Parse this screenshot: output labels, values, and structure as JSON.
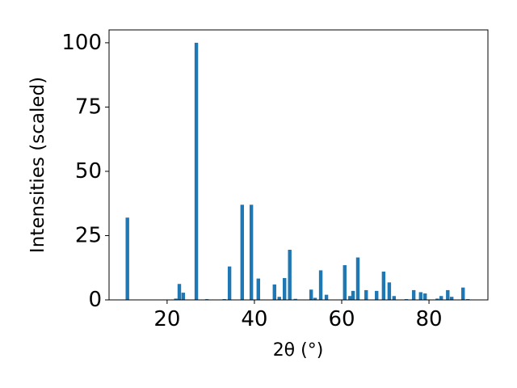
{
  "chart_data": {
    "type": "bar",
    "xlabel": "2θ (°)",
    "ylabel": "Intensities (scaled)",
    "x": [
      10.9,
      22.0,
      22.8,
      23.7,
      26.7,
      29.1,
      33.1,
      34.3,
      37.2,
      39.3,
      40.9,
      44.6,
      45.7,
      46.9,
      48.1,
      49.4,
      53.0,
      53.9,
      55.2,
      56.5,
      60.7,
      61.9,
      62.6,
      63.7,
      65.6,
      68.0,
      69.6,
      70.9,
      72.0,
      74.8,
      76.5,
      78.1,
      79.1,
      81.9,
      82.8,
      84.3,
      85.2,
      87.8,
      88.9
    ],
    "values": [
      32,
      0.5,
      6.2,
      2.8,
      100,
      0.3,
      0.3,
      13,
      37,
      37,
      8.3,
      6,
      1.2,
      8.5,
      19.5,
      0.4,
      4,
      0.8,
      11.5,
      2,
      13.5,
      1.5,
      3.5,
      16.5,
      3.8,
      3.5,
      11,
      6.8,
      1.5,
      0.3,
      3.8,
      3,
      2.5,
      0.5,
      1.5,
      3.8,
      1.2,
      4.8,
      0.3
    ],
    "color": "#1f77b4",
    "xlim": [
      6.7,
      93.5
    ],
    "xticks": [
      20,
      40,
      60,
      80
    ],
    "ylim": [
      0,
      105
    ],
    "yticks": [
      0,
      25,
      50,
      75,
      100
    ]
  }
}
